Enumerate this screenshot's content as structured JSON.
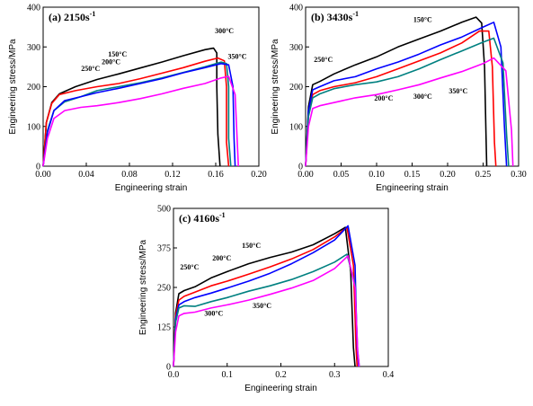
{
  "chart_data": [
    {
      "type": "line",
      "panel_label": "(a) ",
      "rate_label": "2150s",
      "rate_exp": "-1",
      "xlabel": "Engineering strain",
      "ylabel": "Engineering stress/MPa",
      "xlim": [
        0,
        0.2
      ],
      "ylim": [
        0,
        400
      ],
      "xticks": [
        "0.00",
        "0.04",
        "0.08",
        "0.12",
        "0.16",
        "0.20"
      ],
      "yticks": [
        "0",
        "100",
        "200",
        "300",
        "400"
      ],
      "series": [
        {
          "name": "150°C",
          "color": "#000000",
          "x": [
            0,
            0.003,
            0.008,
            0.015,
            0.03,
            0.05,
            0.07,
            0.09,
            0.11,
            0.13,
            0.15,
            0.158,
            0.161,
            0.161,
            0.162,
            0.164
          ],
          "y": [
            0,
            110,
            160,
            182,
            200,
            218,
            232,
            247,
            262,
            278,
            293,
            297,
            285,
            200,
            80,
            0
          ]
        },
        {
          "name": "200°C",
          "color": "#ff0000",
          "x": [
            0,
            0.003,
            0.008,
            0.015,
            0.03,
            0.05,
            0.07,
            0.09,
            0.11,
            0.13,
            0.15,
            0.162,
            0.168,
            0.17,
            0.17,
            0.172
          ],
          "y": [
            0,
            110,
            158,
            180,
            190,
            200,
            208,
            220,
            234,
            248,
            264,
            272,
            265,
            200,
            60,
            0
          ]
        },
        {
          "name": "250°C",
          "color": "#008080",
          "x": [
            0,
            0.004,
            0.01,
            0.02,
            0.035,
            0.05,
            0.07,
            0.09,
            0.11,
            0.13,
            0.15,
            0.165,
            0.17,
            0.172,
            0.172,
            0.174
          ],
          "y": [
            0,
            90,
            140,
            162,
            175,
            190,
            200,
            210,
            222,
            236,
            250,
            262,
            258,
            200,
            70,
            0
          ]
        },
        {
          "name": "300°C",
          "color": "#0000ff",
          "x": [
            0,
            0.004,
            0.01,
            0.02,
            0.035,
            0.05,
            0.07,
            0.09,
            0.11,
            0.13,
            0.15,
            0.165,
            0.172,
            0.176,
            0.177,
            0.178
          ],
          "y": [
            0,
            85,
            140,
            165,
            175,
            185,
            196,
            208,
            220,
            235,
            248,
            258,
            255,
            200,
            70,
            0
          ]
        },
        {
          "name": "350°C",
          "color": "#ff00ff",
          "x": [
            0,
            0.004,
            0.01,
            0.02,
            0.035,
            0.05,
            0.07,
            0.09,
            0.11,
            0.13,
            0.15,
            0.165,
            0.172,
            0.178,
            0.18,
            0.181
          ],
          "y": [
            0,
            70,
            120,
            140,
            148,
            152,
            160,
            170,
            182,
            196,
            208,
            222,
            226,
            180,
            60,
            0
          ]
        }
      ],
      "annotations": [
        {
          "text": "150°C",
          "x": 0.069,
          "y": 276
        },
        {
          "text": "200°C",
          "x": 0.063,
          "y": 256
        },
        {
          "text": "250°C",
          "x": 0.044,
          "y": 240
        },
        {
          "text": "300°C",
          "x": 0.168,
          "y": 334
        },
        {
          "text": "350°C",
          "x": 0.18,
          "y": 270
        }
      ]
    },
    {
      "type": "line",
      "panel_label": "(b) ",
      "rate_label": "3430s",
      "rate_exp": "-1",
      "xlabel": "Engineering strain",
      "ylabel": "Engineering stress/MPa",
      "xlim": [
        0,
        0.3
      ],
      "ylim": [
        0,
        400
      ],
      "xticks": [
        "0.00",
        "0.05",
        "0.10",
        "0.15",
        "0.20",
        "0.25",
        "0.30"
      ],
      "yticks": [
        "0",
        "100",
        "200",
        "300",
        "400"
      ],
      "series": [
        {
          "name": "150°C",
          "color": "#000000",
          "x": [
            0,
            0.004,
            0.01,
            0.02,
            0.04,
            0.07,
            0.1,
            0.13,
            0.16,
            0.19,
            0.22,
            0.24,
            0.248,
            0.252,
            0.254,
            0.255
          ],
          "y": [
            0,
            150,
            205,
            213,
            232,
            255,
            275,
            300,
            320,
            340,
            362,
            375,
            360,
            250,
            80,
            0
          ]
        },
        {
          "name": "200°C",
          "color": "#ff0000",
          "x": [
            0,
            0.004,
            0.01,
            0.02,
            0.04,
            0.07,
            0.1,
            0.13,
            0.16,
            0.19,
            0.22,
            0.245,
            0.258,
            0.263,
            0.266,
            0.268
          ],
          "y": [
            0,
            130,
            180,
            190,
            200,
            210,
            225,
            245,
            265,
            285,
            310,
            340,
            340,
            250,
            60,
            0
          ]
        },
        {
          "name": "250°C",
          "color": "#0000ff",
          "x": [
            0,
            0.004,
            0.01,
            0.02,
            0.04,
            0.07,
            0.1,
            0.13,
            0.16,
            0.19,
            0.22,
            0.25,
            0.265,
            0.275,
            0.28,
            0.283
          ],
          "y": [
            0,
            140,
            192,
            200,
            215,
            225,
            245,
            262,
            282,
            305,
            325,
            350,
            362,
            300,
            100,
            0
          ]
        },
        {
          "name": "300°C",
          "color": "#008080",
          "x": [
            0,
            0.004,
            0.01,
            0.02,
            0.04,
            0.07,
            0.1,
            0.13,
            0.16,
            0.19,
            0.22,
            0.25,
            0.265,
            0.278,
            0.283,
            0.286
          ],
          "y": [
            0,
            125,
            172,
            182,
            195,
            205,
            212,
            225,
            245,
            268,
            290,
            312,
            322,
            260,
            80,
            0
          ]
        },
        {
          "name": "350°C",
          "color": "#ff00ff",
          "x": [
            0,
            0.004,
            0.01,
            0.02,
            0.04,
            0.07,
            0.1,
            0.13,
            0.16,
            0.19,
            0.22,
            0.25,
            0.265,
            0.282,
            0.29,
            0.292
          ],
          "y": [
            0,
            100,
            145,
            152,
            160,
            172,
            180,
            192,
            205,
            222,
            238,
            258,
            272,
            240,
            90,
            0
          ]
        }
      ],
      "annotations": [
        {
          "text": "150°C",
          "x": 0.165,
          "y": 363
        },
        {
          "text": "250°C",
          "x": 0.025,
          "y": 262
        },
        {
          "text": "200°C",
          "x": 0.11,
          "y": 165
        },
        {
          "text": "300°C",
          "x": 0.165,
          "y": 170
        },
        {
          "text": "350°C",
          "x": 0.215,
          "y": 183
        }
      ]
    },
    {
      "type": "line",
      "panel_label": "(c) ",
      "rate_label": "4160s",
      "rate_exp": "-1",
      "xlabel": "Engineering  strain",
      "ylabel": "Engineering stress/MPa",
      "xlim": [
        0,
        0.4
      ],
      "ylim": [
        0,
        500
      ],
      "xticks": [
        "0.0",
        "0.1",
        "0.2",
        "0.3",
        "0.4"
      ],
      "yticks": [
        "0",
        "125",
        "250",
        "375",
        "500"
      ],
      "series": [
        {
          "name": "150°C",
          "color": "#000000",
          "x": [
            0,
            0.004,
            0.01,
            0.02,
            0.04,
            0.07,
            0.1,
            0.14,
            0.18,
            0.22,
            0.26,
            0.3,
            0.32,
            0.33,
            0.335,
            0.338
          ],
          "y": [
            0,
            170,
            230,
            240,
            252,
            280,
            300,
            325,
            345,
            362,
            385,
            420,
            440,
            300,
            60,
            0
          ]
        },
        {
          "name": "200°C",
          "color": "#ff0000",
          "x": [
            0,
            0.004,
            0.01,
            0.02,
            0.04,
            0.07,
            0.1,
            0.14,
            0.18,
            0.22,
            0.26,
            0.3,
            0.323,
            0.335,
            0.34,
            0.342
          ],
          "y": [
            0,
            160,
            210,
            222,
            235,
            255,
            270,
            292,
            315,
            340,
            370,
            410,
            440,
            320,
            60,
            0
          ]
        },
        {
          "name": "250°C",
          "color": "#0000ff",
          "x": [
            0,
            0.004,
            0.01,
            0.02,
            0.04,
            0.07,
            0.1,
            0.14,
            0.18,
            0.22,
            0.26,
            0.3,
            0.325,
            0.338,
            0.342,
            0.345
          ],
          "y": [
            0,
            150,
            195,
            205,
            218,
            232,
            248,
            270,
            295,
            325,
            360,
            400,
            445,
            320,
            60,
            0
          ]
        },
        {
          "name": "300°C",
          "color": "#008080",
          "x": [
            0,
            0.004,
            0.01,
            0.02,
            0.04,
            0.07,
            0.1,
            0.14,
            0.18,
            0.22,
            0.26,
            0.3,
            0.323,
            0.338,
            0.343,
            0.346
          ],
          "y": [
            0,
            140,
            185,
            192,
            190,
            205,
            218,
            238,
            255,
            275,
            300,
            330,
            355,
            260,
            50,
            0
          ]
        },
        {
          "name": "350°C",
          "color": "#ff00ff",
          "x": [
            0,
            0.004,
            0.01,
            0.02,
            0.04,
            0.07,
            0.1,
            0.14,
            0.18,
            0.22,
            0.26,
            0.3,
            0.325,
            0.338,
            0.343,
            0.346
          ],
          "y": [
            0,
            110,
            160,
            168,
            172,
            185,
            195,
            210,
            228,
            248,
            272,
            310,
            350,
            250,
            50,
            0
          ]
        }
      ],
      "annotations": [
        {
          "text": "150°C",
          "x": 0.145,
          "y": 375
        },
        {
          "text": "200°C",
          "x": 0.09,
          "y": 335
        },
        {
          "text": "250°C",
          "x": 0.03,
          "y": 307
        },
        {
          "text": "300°C",
          "x": 0.075,
          "y": 160
        },
        {
          "text": "350°C",
          "x": 0.165,
          "y": 185
        }
      ]
    }
  ]
}
